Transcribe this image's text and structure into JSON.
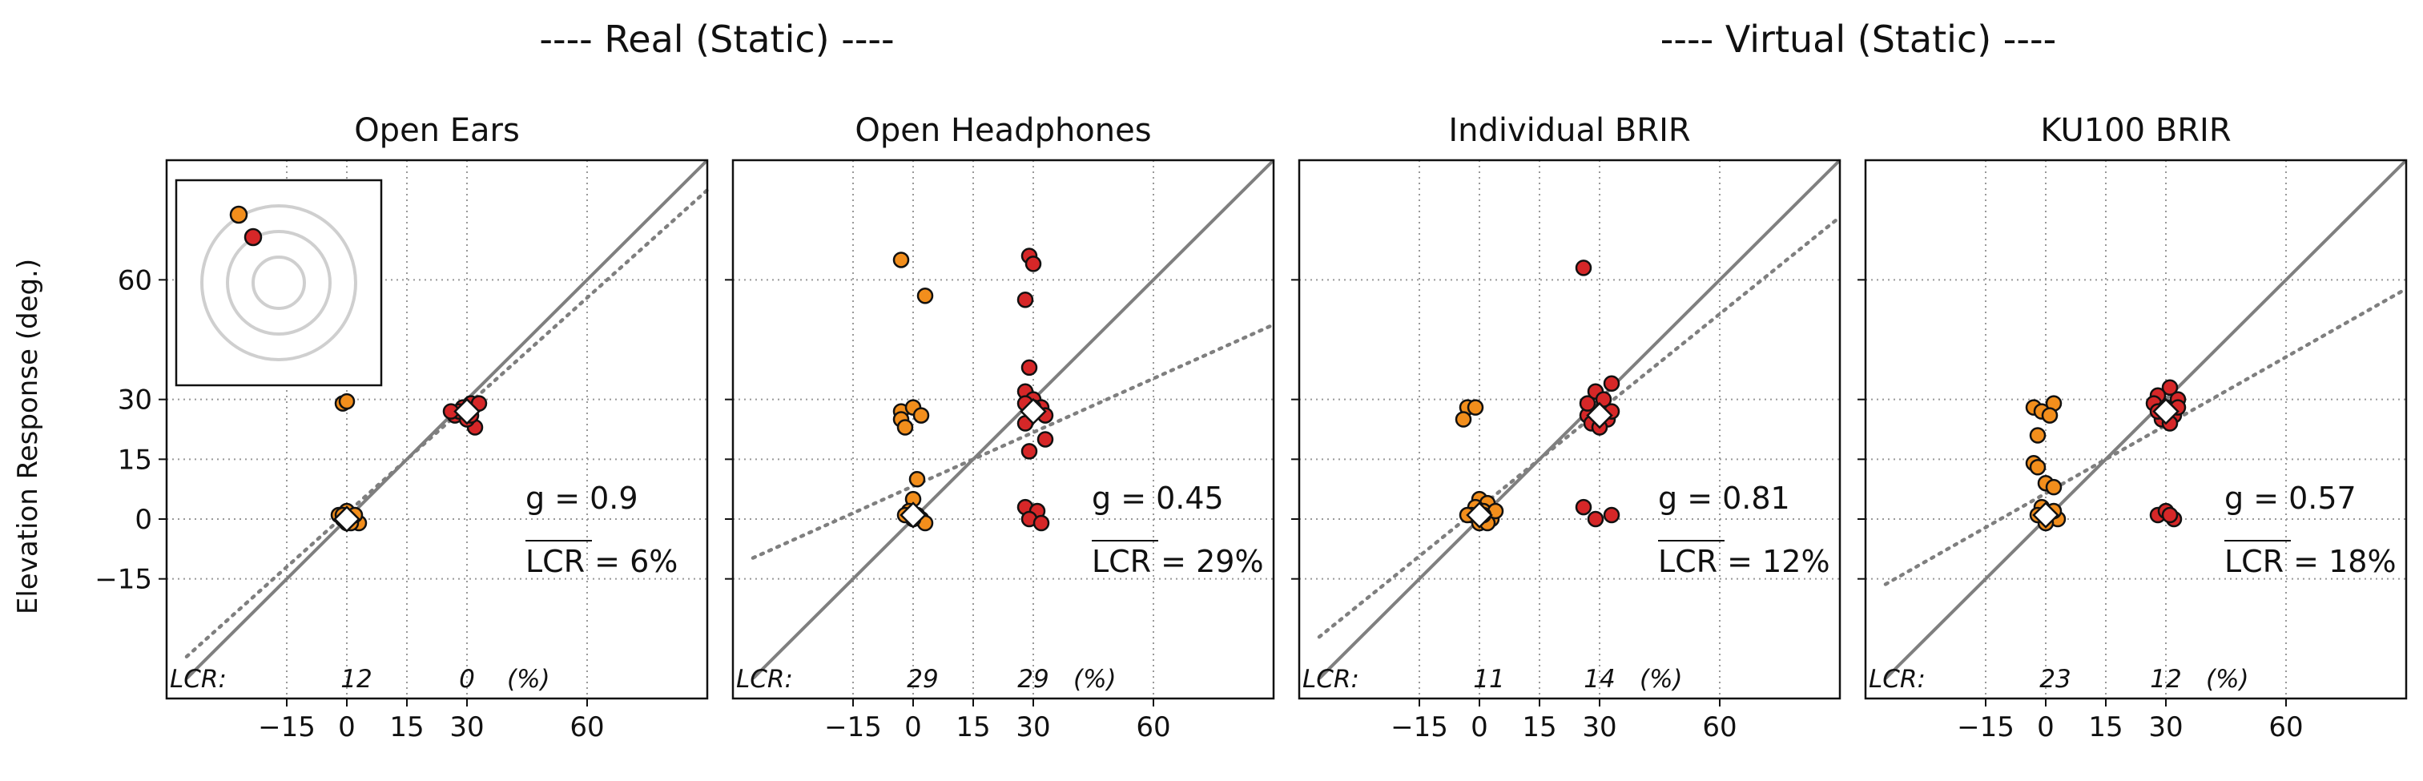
{
  "figure": {
    "groups": [
      {
        "title": "---- Real (Static) ----"
      },
      {
        "title": "---- Virtual (Static) ----"
      }
    ],
    "ylabel": "Elevation Response (deg.)"
  },
  "chart_data": [
    {
      "type": "scatter",
      "title": "Open Ears",
      "xticks": [
        "−15",
        "0",
        "15",
        "30",
        "60"
      ],
      "yticks": [
        "60",
        "30",
        "15",
        "0",
        "−15"
      ],
      "xlim": [
        -45,
        90
      ],
      "ylim": [
        -45,
        90
      ],
      "grid": true,
      "g_label": "g = 0.9",
      "lcr_label": "LCR = 6%",
      "lcr_row": {
        "prefix": "LCR:",
        "values": [
          "12",
          "0"
        ],
        "unit": "(%)"
      },
      "fit_slope": 0.9,
      "means": [
        [
          0,
          0
        ],
        [
          30,
          27
        ]
      ],
      "series": [
        {
          "name": "",
          "color": "#f28e1c",
          "points": [
            [
              -1,
              0
            ],
            [
              0,
              -1
            ],
            [
              1,
              1
            ],
            [
              2,
              0
            ],
            [
              -2,
              1
            ],
            [
              3,
              -1
            ],
            [
              0,
              2
            ],
            [
              1,
              -1
            ],
            [
              -1,
              29
            ],
            [
              0,
              29.5
            ],
            [
              -1,
              1
            ],
            [
              2,
              1
            ]
          ]
        },
        {
          "name": "",
          "color": "#d62728",
          "points": [
            [
              27,
              26
            ],
            [
              29,
              28
            ],
            [
              31,
              29
            ],
            [
              32,
              23
            ],
            [
              30,
              25
            ],
            [
              28,
              27
            ],
            [
              33,
              29
            ],
            [
              26,
              27
            ],
            [
              31,
              26
            ]
          ]
        }
      ],
      "inset": true,
      "inset_points": [
        {
          "color": "#f28e1c"
        },
        {
          "color": "#d62728"
        }
      ]
    },
    {
      "type": "scatter",
      "title": "Open Headphones",
      "xticks": [
        "−15",
        "0",
        "15",
        "30",
        "60"
      ],
      "yticks": [
        "60",
        "30",
        "15",
        "0",
        "−15"
      ],
      "xlim": [
        -45,
        90
      ],
      "ylim": [
        -45,
        90
      ],
      "grid": true,
      "g_label": "g = 0.45",
      "lcr_label": "LCR = 29%",
      "lcr_row": {
        "prefix": "LCR:",
        "values": [
          "29",
          "29"
        ],
        "unit": "(%)"
      },
      "fit_slope": 0.45,
      "means": [
        [
          0,
          1
        ],
        [
          30,
          27
        ]
      ],
      "series": [
        {
          "name": "",
          "color": "#f28e1c",
          "points": [
            [
              -3,
              65
            ],
            [
              3,
              56
            ],
            [
              -3,
              27
            ],
            [
              0,
              28
            ],
            [
              2,
              26
            ],
            [
              -3,
              25
            ],
            [
              -2,
              23
            ],
            [
              1,
              10
            ],
            [
              0,
              5
            ],
            [
              -1,
              2
            ],
            [
              1,
              1
            ],
            [
              2,
              0
            ],
            [
              3,
              -1
            ],
            [
              0,
              0
            ],
            [
              -2,
              1
            ]
          ]
        },
        {
          "name": "",
          "color": "#d62728",
          "points": [
            [
              29,
              66
            ],
            [
              30,
              64
            ],
            [
              28,
              55
            ],
            [
              29,
              38
            ],
            [
              28,
              32
            ],
            [
              30,
              30
            ],
            [
              32,
              28
            ],
            [
              33,
              26
            ],
            [
              28,
              24
            ],
            [
              33,
              20
            ],
            [
              29,
              17
            ],
            [
              28,
              3
            ],
            [
              31,
              2
            ],
            [
              29,
              0
            ],
            [
              32,
              -1
            ],
            [
              30,
              28
            ],
            [
              28,
              29
            ]
          ]
        }
      ]
    },
    {
      "type": "scatter",
      "title": "Individual BRIR",
      "xticks": [
        "−15",
        "0",
        "15",
        "30",
        "60"
      ],
      "yticks": [
        "60",
        "30",
        "15",
        "0",
        "−15"
      ],
      "xlim": [
        -45,
        90
      ],
      "ylim": [
        -45,
        90
      ],
      "grid": true,
      "g_label": "g = 0.81",
      "lcr_label": "LCR = 12%",
      "lcr_row": {
        "prefix": "LCR:",
        "values": [
          "11",
          "14"
        ],
        "unit": "(%)"
      },
      "fit_slope": 0.81,
      "means": [
        [
          0,
          1
        ],
        [
          30,
          26
        ]
      ],
      "series": [
        {
          "name": "",
          "color": "#f28e1c",
          "points": [
            [
              -3,
              28
            ],
            [
              -1,
              28
            ],
            [
              -4,
              25
            ],
            [
              0,
              5
            ],
            [
              2,
              4
            ],
            [
              -1,
              3
            ],
            [
              1,
              2
            ],
            [
              -2,
              1
            ],
            [
              3,
              0
            ],
            [
              0,
              -1
            ],
            [
              2,
              -1
            ],
            [
              -3,
              1
            ],
            [
              4,
              2
            ],
            [
              1,
              1
            ]
          ]
        },
        {
          "name": "",
          "color": "#d62728",
          "points": [
            [
              26,
              63
            ],
            [
              29,
              32
            ],
            [
              33,
              34
            ],
            [
              27,
              26
            ],
            [
              31,
              28
            ],
            [
              32,
              25
            ],
            [
              28,
              24
            ],
            [
              30,
              23
            ],
            [
              33,
              27
            ],
            [
              27,
              29
            ],
            [
              26,
              3
            ],
            [
              29,
              0
            ],
            [
              33,
              1
            ],
            [
              31,
              30
            ]
          ]
        }
      ]
    },
    {
      "type": "scatter",
      "title": "KU100 BRIR",
      "xticks": [
        "−15",
        "0",
        "15",
        "30",
        "60"
      ],
      "yticks": [
        "60",
        "30",
        "15",
        "0",
        "−15"
      ],
      "xlim": [
        -45,
        90
      ],
      "ylim": [
        -45,
        90
      ],
      "grid": true,
      "g_label": "g = 0.57",
      "lcr_label": "LCR = 18%",
      "lcr_row": {
        "prefix": "LCR:",
        "values": [
          "23",
          "12"
        ],
        "unit": "(%)"
      },
      "fit_slope": 0.57,
      "means": [
        [
          0,
          1
        ],
        [
          30,
          27
        ]
      ],
      "series": [
        {
          "name": "",
          "color": "#f28e1c",
          "points": [
            [
              -3,
              28
            ],
            [
              2,
              29
            ],
            [
              -1,
              27
            ],
            [
              1,
              26
            ],
            [
              -2,
              21
            ],
            [
              -3,
              14
            ],
            [
              -2,
              13
            ],
            [
              0,
              9
            ],
            [
              2,
              8
            ],
            [
              -1,
              3
            ],
            [
              1,
              1
            ],
            [
              3,
              0
            ],
            [
              0,
              -1
            ],
            [
              2,
              2
            ],
            [
              -2,
              1
            ]
          ]
        },
        {
          "name": "",
          "color": "#d62728",
          "points": [
            [
              31,
              33
            ],
            [
              28,
              31
            ],
            [
              33,
              30
            ],
            [
              27,
              29
            ],
            [
              30,
              28
            ],
            [
              32,
              26
            ],
            [
              29,
              25
            ],
            [
              31,
              24
            ],
            [
              28,
              27
            ],
            [
              33,
              28
            ],
            [
              28,
              1
            ],
            [
              30,
              2
            ],
            [
              32,
              0
            ],
            [
              31,
              1
            ]
          ]
        }
      ]
    }
  ]
}
